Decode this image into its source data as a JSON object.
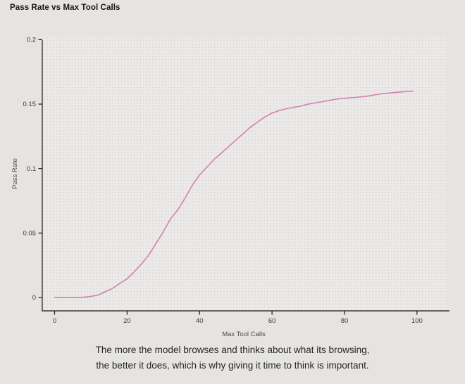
{
  "caption": {
    "line1": "The more the model browses and thinks about what its browsing,",
    "line2": "the better it does, which is why giving it time to think is important."
  },
  "colors": {
    "page_bg": "#e5e4e1",
    "plot_bg": "#eceae8",
    "plot_dot": "#d3d2d0",
    "axis": "#1a1a1a",
    "tick_label": "#3c3c3c",
    "axis_title": "#4a4a4a",
    "line": "#d685b5",
    "title": "#161616",
    "caption": "#262626"
  },
  "chart_data": {
    "type": "line",
    "title": "Pass Rate vs Max Tool Calls",
    "xlabel": "Max Tool Calls",
    "ylabel": "Pass Rate",
    "xlim": [
      -3.4,
      108
    ],
    "ylim": [
      -0.0104,
      0.2024
    ],
    "x_ticks": [
      0,
      20,
      40,
      60,
      80,
      100
    ],
    "x_tick_labels": [
      "0",
      "20",
      "40",
      "60",
      "80",
      "100"
    ],
    "y_ticks": [
      0,
      0.05,
      0.1,
      0.15,
      0.2
    ],
    "y_tick_labels": [
      "0",
      "0.05",
      "0.1",
      "0.15",
      "0.2"
    ],
    "grid": false,
    "background_pattern": "dotted",
    "legend_position": "none",
    "series": [
      {
        "name": "Pass Rate",
        "color": "#d685b5",
        "x": [
          0,
          2,
          4,
          6,
          8,
          10,
          12,
          14,
          16,
          18,
          20,
          22,
          24,
          26,
          28,
          30,
          32,
          34,
          36,
          38,
          40,
          42,
          44,
          46,
          48,
          50,
          52,
          54,
          56,
          58,
          60,
          62,
          64,
          66,
          68,
          70,
          72,
          74,
          76,
          78,
          80,
          82,
          84,
          86,
          88,
          90,
          92,
          94,
          96,
          98,
          99
        ],
        "y": [
          0.0,
          0.0,
          0.0,
          0.0,
          0.0002,
          0.0008,
          0.0018,
          0.0045,
          0.007,
          0.011,
          0.0145,
          0.02,
          0.026,
          0.033,
          0.042,
          0.051,
          0.061,
          0.068,
          0.077,
          0.087,
          0.095,
          0.101,
          0.107,
          0.112,
          0.117,
          0.122,
          0.127,
          0.132,
          0.136,
          0.14,
          0.143,
          0.145,
          0.1465,
          0.1475,
          0.1485,
          0.15,
          0.151,
          0.152,
          0.153,
          0.154,
          0.1545,
          0.155,
          0.1555,
          0.156,
          0.157,
          0.158,
          0.1585,
          0.159,
          0.1595,
          0.16,
          0.16
        ]
      }
    ]
  }
}
